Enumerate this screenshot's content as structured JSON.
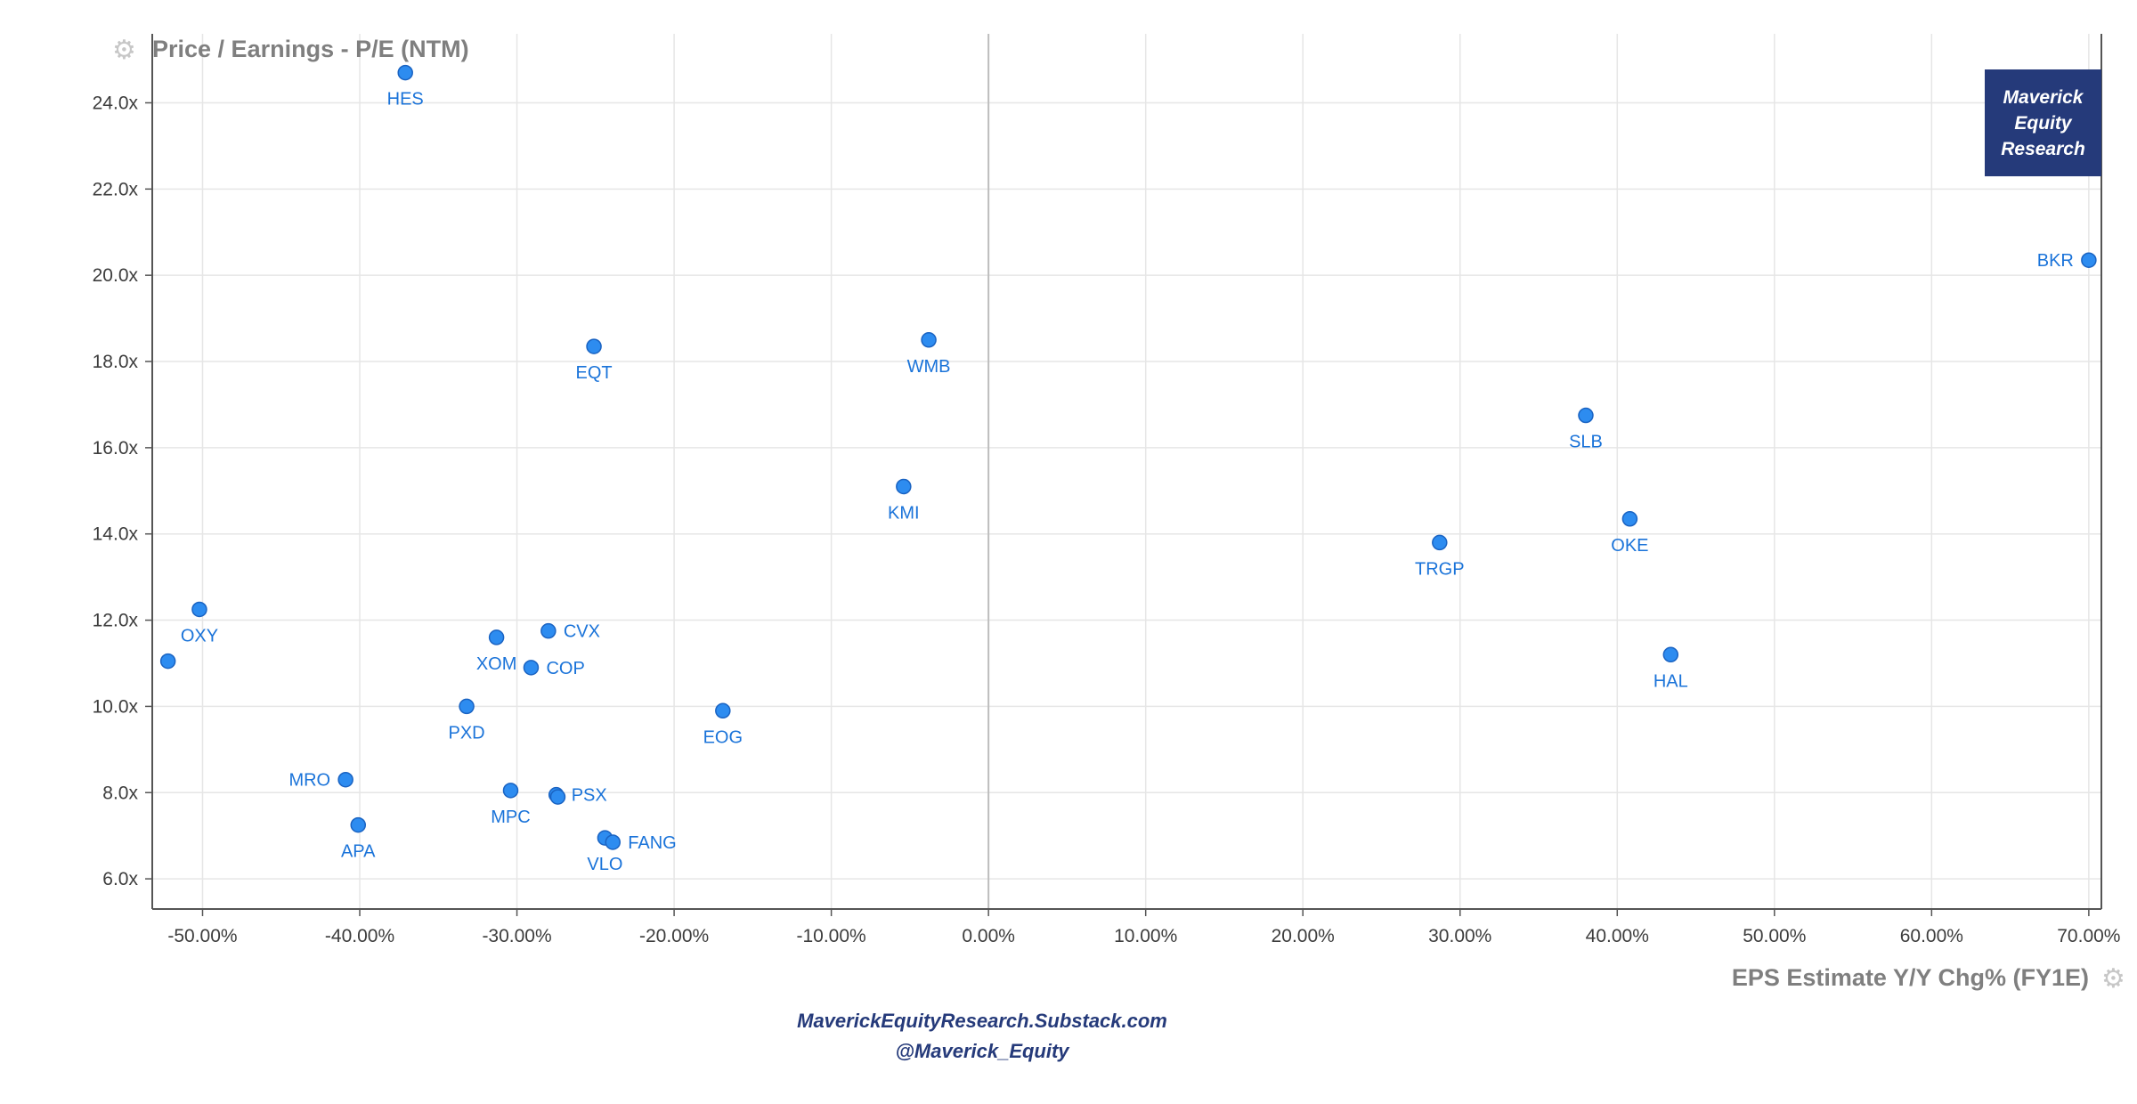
{
  "chart_data": {
    "type": "scatter",
    "title": "Price / Earnings - P/E (NTM)",
    "xlabel": "EPS Estimate Y/Y Chg% (FY1E)",
    "ylabel": "Price / Earnings - P/E (NTM)",
    "xlim": [
      -53.2,
      70.8
    ],
    "ylim": [
      5.3,
      25.6
    ],
    "x_ticks": [
      -50,
      -40,
      -30,
      -20,
      -10,
      0,
      10,
      20,
      30,
      40,
      50,
      60,
      70
    ],
    "x_tick_labels": [
      "-50.00%",
      "-40.00%",
      "-30.00%",
      "-20.00%",
      "-10.00%",
      "0.00%",
      "10.00%",
      "20.00%",
      "30.00%",
      "40.00%",
      "50.00%",
      "60.00%",
      "70.00%"
    ],
    "y_ticks": [
      6,
      8,
      10,
      12,
      14,
      16,
      18,
      20,
      22,
      24
    ],
    "y_tick_labels": [
      "6.0x",
      "8.0x",
      "10.0x",
      "12.0x",
      "14.0x",
      "16.0x",
      "18.0x",
      "20.0x",
      "22.0x",
      "24.0x"
    ],
    "grid": true,
    "points": [
      {
        "label": "HES",
        "x": -37.1,
        "y": 24.7,
        "label_pos": "below"
      },
      {
        "label": "EQT",
        "x": -25.1,
        "y": 18.35,
        "label_pos": "below"
      },
      {
        "label": "WMB",
        "x": -3.8,
        "y": 18.5,
        "label_pos": "below"
      },
      {
        "label": "KMI",
        "x": -5.4,
        "y": 15.1,
        "label_pos": "below"
      },
      {
        "label": "BKR",
        "x": 70.0,
        "y": 20.35,
        "label_pos": "left"
      },
      {
        "label": "SLB",
        "x": 38.0,
        "y": 16.75,
        "label_pos": "below"
      },
      {
        "label": "OKE",
        "x": 40.8,
        "y": 14.35,
        "label_pos": "below"
      },
      {
        "label": "TRGP",
        "x": 28.7,
        "y": 13.8,
        "label_pos": "below"
      },
      {
        "label": "HAL",
        "x": 43.4,
        "y": 11.2,
        "label_pos": "below"
      },
      {
        "label": "OXY",
        "x": -50.2,
        "y": 12.25,
        "label_pos": "below"
      },
      {
        "label": "",
        "x": -52.2,
        "y": 11.05,
        "label_pos": "none"
      },
      {
        "label": "XOM",
        "x": -31.3,
        "y": 11.6,
        "label_pos": "below"
      },
      {
        "label": "CVX",
        "x": -28.0,
        "y": 11.75,
        "label_pos": "right"
      },
      {
        "label": "COP",
        "x": -29.1,
        "y": 10.9,
        "label_pos": "right"
      },
      {
        "label": "PXD",
        "x": -33.2,
        "y": 10.0,
        "label_pos": "below"
      },
      {
        "label": "EOG",
        "x": -16.9,
        "y": 9.9,
        "label_pos": "below"
      },
      {
        "label": "MRO",
        "x": -40.9,
        "y": 8.3,
        "label_pos": "left"
      },
      {
        "label": "APA",
        "x": -40.1,
        "y": 7.25,
        "label_pos": "below"
      },
      {
        "label": "MPC",
        "x": -30.4,
        "y": 8.05,
        "label_pos": "below"
      },
      {
        "label": "PSX",
        "x": -27.5,
        "y": 7.95,
        "label_pos": "right"
      },
      {
        "label": "",
        "x": -27.4,
        "y": 7.9,
        "label_pos": "none"
      },
      {
        "label": "VLO",
        "x": -24.4,
        "y": 6.95,
        "label_pos": "below"
      },
      {
        "label": "FANG",
        "x": -23.9,
        "y": 6.85,
        "label_pos": "right"
      }
    ]
  },
  "watermark": {
    "line1": "Maverick",
    "line2": "Equity",
    "line3": "Research"
  },
  "footer": {
    "site": "MaverickEquityResearch.Substack.com",
    "handle": "@Maverick_Equity"
  },
  "icons": {
    "title_settings": "gear-icon",
    "xaxis_settings": "gear-icon"
  },
  "colors": {
    "point_fill": "#2d8cf0",
    "point_stroke": "#1a63c2",
    "label": "#1a73d9",
    "grid": "#e6e6e6",
    "watermark_bg": "#253a7a"
  }
}
